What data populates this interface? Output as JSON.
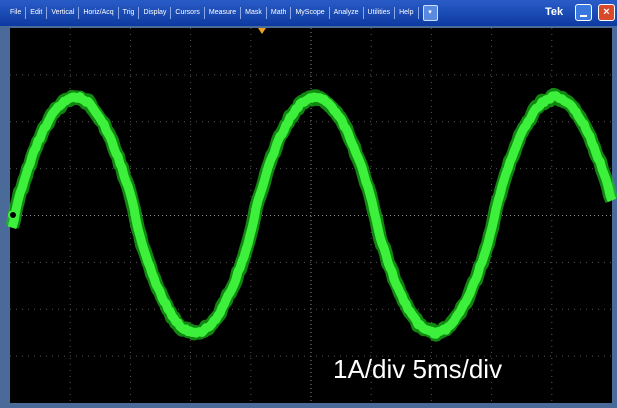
{
  "menu": [
    "File",
    "Edit",
    "Vertical",
    "Horiz/Acq",
    "Trig",
    "Display",
    "Cursors",
    "Measure",
    "Mask",
    "Math",
    "MyScope",
    "Analyze",
    "Utilities",
    "Help"
  ],
  "brand": "Tek",
  "annotation": "1A/div 5ms/div"
}
